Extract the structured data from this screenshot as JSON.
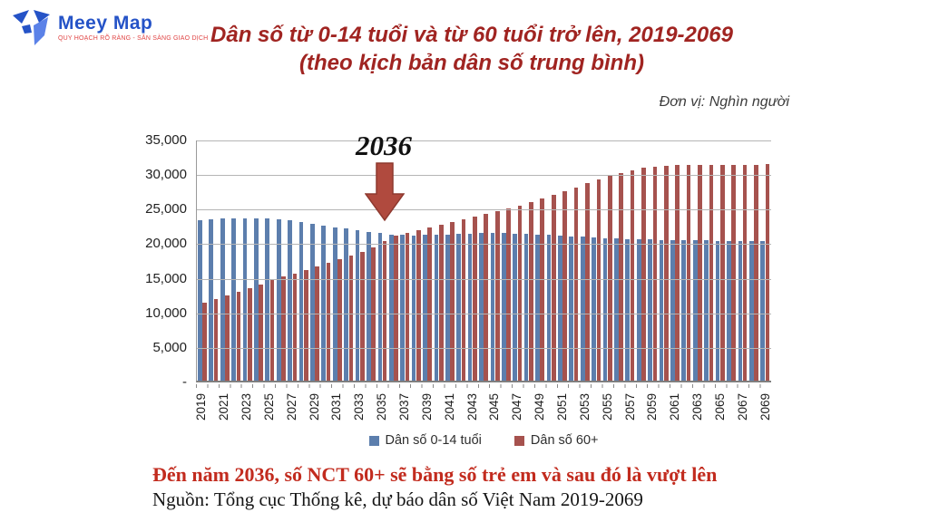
{
  "logo": {
    "name": "Meey Map",
    "tagline": "QUY HOẠCH RÕ RÀNG - SẴN SÀNG GIAO DỊCH"
  },
  "title": {
    "line1": "Dân số từ 0-14 tuổi và từ 60 tuổi trở lên, 2019-2069",
    "line2": "(theo kịch bản dân số trung bình)"
  },
  "unit_label": "Đơn vị: Nghìn người",
  "annotation": {
    "crossover_year_label": "2036"
  },
  "legend": [
    {
      "label": "Dân số 0-14 tuổi",
      "color": "#5c7ead"
    },
    {
      "label": "Dân số 60+",
      "color": "#a6524e"
    }
  ],
  "footer": {
    "highlight": "Đến năm 2036, số NCT 60+ sẽ bằng số trẻ em và sau đó là vượt lên",
    "source": "Nguồn: Tổng cục Thống kê, dự báo dân số Việt Nam 2019-2069"
  },
  "colors": {
    "title_red": "#a02421",
    "footer_red": "#c22b1e",
    "bar_blue": "#5c7ead",
    "bar_red": "#a6524e",
    "arrow_fill": "#b04a3e",
    "arrow_stroke": "#8e392f"
  },
  "chart_data": {
    "type": "bar",
    "title": "Dân số từ 0-14 tuổi và từ 60 tuổi trở lên, 2019-2069 (theo kịch bản dân số trung bình)",
    "unit": "Nghìn người",
    "year_start": 2019,
    "year_end": 2069,
    "ylim": [
      0,
      35000
    ],
    "grid": true,
    "legend_position": "bottom",
    "y_ticks": [
      {
        "label": "35,000",
        "value": 35000
      },
      {
        "label": "30,000",
        "value": 30000
      },
      {
        "label": "25,000",
        "value": 25000
      },
      {
        "label": "20,000",
        "value": 20000
      },
      {
        "label": "15,000",
        "value": 15000
      },
      {
        "label": "10,000",
        "value": 10000
      },
      {
        "label": "5,000",
        "value": 5000
      },
      {
        "label": "-",
        "value": 0
      }
    ],
    "x_tick_labels": [
      "2019",
      "2021",
      "2023",
      "2025",
      "2027",
      "2029",
      "2031",
      "2033",
      "2035",
      "2037",
      "2039",
      "2041",
      "2043",
      "2045",
      "2047",
      "2049",
      "2051",
      "2053",
      "2055",
      "2057",
      "2059",
      "2061",
      "2063",
      "2065",
      "2067",
      "2069"
    ],
    "annotations": [
      {
        "text": "2036",
        "note": "red block arrow pointing down at year 2036 where the two series are equal"
      }
    ],
    "series": [
      {
        "name": "Dân số 0-14 tuổi",
        "color": "#5c7ead",
        "values": [
          23400,
          23500,
          23580,
          23630,
          23670,
          23660,
          23600,
          23480,
          23320,
          23120,
          22880,
          22630,
          22380,
          22130,
          21900,
          21680,
          21480,
          21320,
          21230,
          21200,
          21220,
          21270,
          21330,
          21390,
          21440,
          21470,
          21480,
          21470,
          21440,
          21390,
          21330,
          21250,
          21160,
          21060,
          20960,
          20870,
          20790,
          20720,
          20660,
          20610,
          20560,
          20520,
          20490,
          20460,
          20430,
          20410,
          20390,
          20370,
          20350,
          20330,
          20310
        ]
      },
      {
        "name": "Dân số 60+",
        "color": "#a6524e",
        "values": [
          11400,
          11950,
          12480,
          13000,
          13520,
          14050,
          14600,
          15130,
          15650,
          16160,
          16670,
          17180,
          17700,
          18230,
          18770,
          19450,
          20300,
          21150,
          21550,
          21950,
          22300,
          22680,
          23080,
          23500,
          23900,
          24280,
          24650,
          25050,
          25500,
          26000,
          26520,
          27050,
          27600,
          28180,
          28750,
          29300,
          29850,
          30300,
          30700,
          31000,
          31200,
          31320,
          31380,
          31400,
          31390,
          31380,
          31390,
          31420,
          31450,
          31490,
          31530
        ]
      }
    ]
  }
}
